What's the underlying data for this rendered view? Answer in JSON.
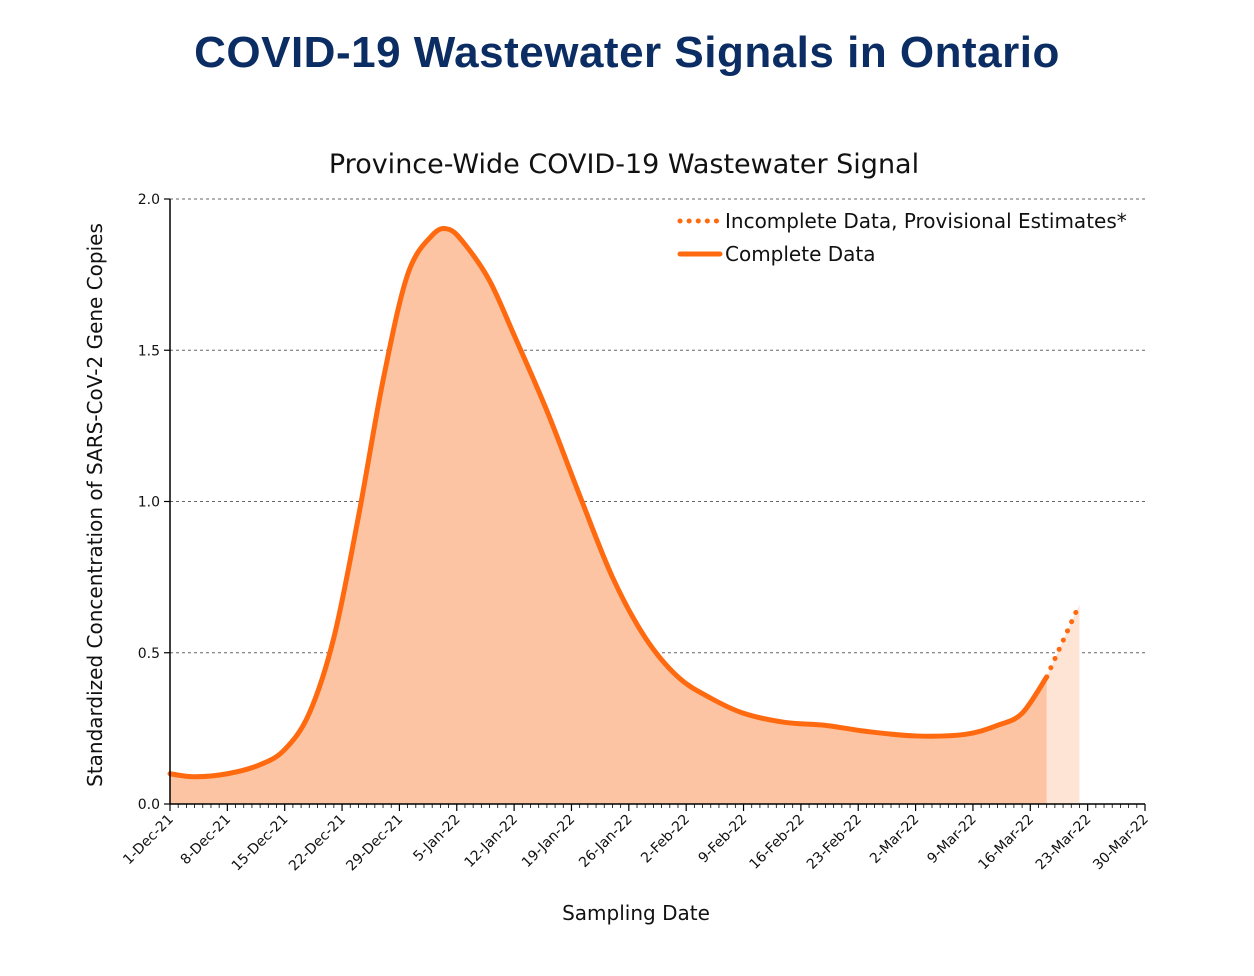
{
  "page": {
    "banner_title": "COVID-19 Wastewater Signals in Ontario"
  },
  "colors": {
    "line": "#ff6a10",
    "fill_complete": "#fcc4a2",
    "fill_provisional": "#fde4d4",
    "banner": "#0b2d63"
  },
  "chart_data": {
    "type": "area",
    "title": "Province-Wide COVID-19 Wastewater Signal",
    "xlabel": "Sampling Date",
    "ylabel": "Standardized Concentration of SARS-CoV-2 Gene Copies",
    "ylim": [
      0,
      2.0
    ],
    "yticks": [
      "0.0",
      "0.5",
      "1.0",
      "1.5",
      "2.0"
    ],
    "xlim": [
      "2021-12-01",
      "2022-03-30"
    ],
    "xticks": [
      "1-Dec-21",
      "8-Dec-21",
      "15-Dec-21",
      "22-Dec-21",
      "29-Dec-21",
      "5-Jan-22",
      "12-Jan-22",
      "19-Jan-22",
      "26-Jan-22",
      "2-Feb-22",
      "9-Feb-22",
      "16-Feb-22",
      "23-Feb-22",
      "2-Mar-22",
      "9-Mar-22",
      "16-Mar-22",
      "23-Mar-22",
      "30-Mar-22"
    ],
    "grid": "horizontal dashed",
    "legend_position": "top-right",
    "series": [
      {
        "name": "Complete Data",
        "style": "solid",
        "x": [
          "2021-12-01",
          "2021-12-04",
          "2021-12-08",
          "2021-12-12",
          "2021-12-15",
          "2021-12-18",
          "2021-12-21",
          "2021-12-24",
          "2021-12-27",
          "2021-12-30",
          "2022-01-02",
          "2022-01-04",
          "2022-01-06",
          "2022-01-09",
          "2022-01-12",
          "2022-01-16",
          "2022-01-20",
          "2022-01-24",
          "2022-01-28",
          "2022-02-01",
          "2022-02-05",
          "2022-02-09",
          "2022-02-14",
          "2022-02-19",
          "2022-02-24",
          "2022-03-02",
          "2022-03-08",
          "2022-03-12",
          "2022-03-15",
          "2022-03-18"
        ],
        "values": [
          0.1,
          0.09,
          0.1,
          0.13,
          0.18,
          0.3,
          0.55,
          0.95,
          1.4,
          1.75,
          1.88,
          1.9,
          1.85,
          1.73,
          1.55,
          1.3,
          1.02,
          0.75,
          0.55,
          0.42,
          0.35,
          0.3,
          0.27,
          0.26,
          0.24,
          0.225,
          0.23,
          0.26,
          0.3,
          0.42
        ]
      },
      {
        "name": "Incomplete Data, Provisional Estimates*",
        "style": "dotted",
        "x": [
          "2022-03-18",
          "2022-03-20",
          "2022-03-22"
        ],
        "values": [
          0.42,
          0.54,
          0.66
        ]
      }
    ]
  }
}
